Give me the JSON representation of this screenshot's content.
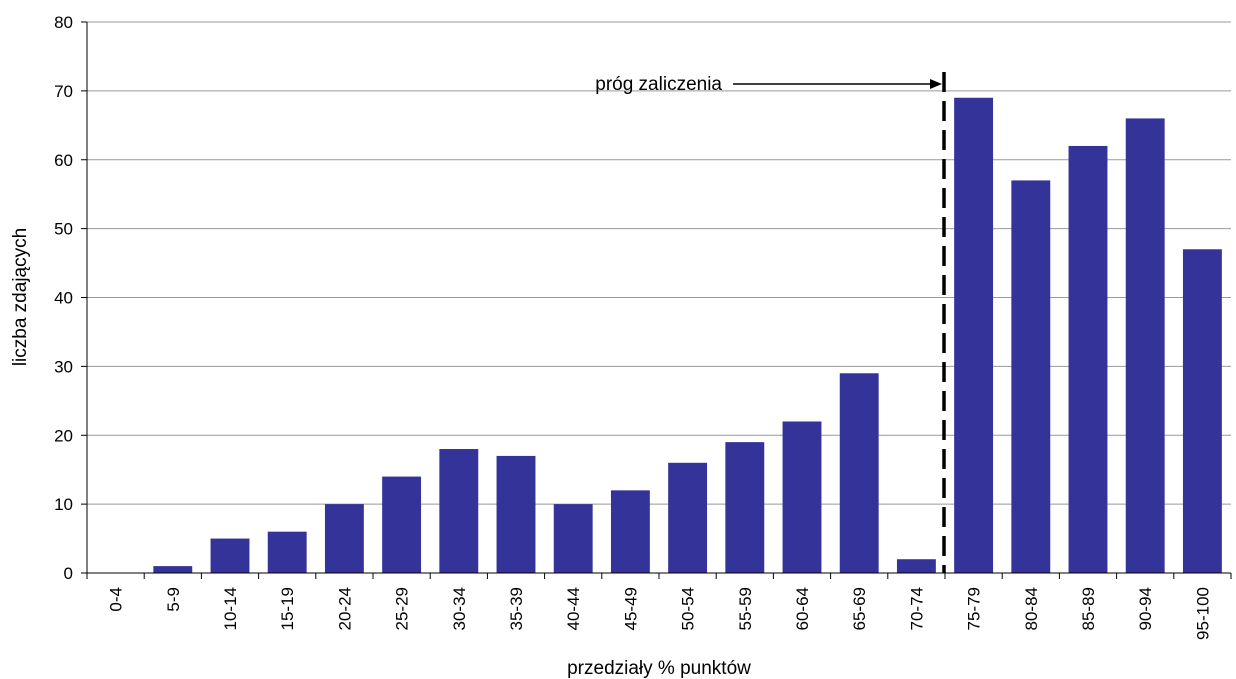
{
  "chart_data": {
    "type": "bar",
    "title": "",
    "xlabel": "przedziały % punktów",
    "ylabel": "liczba zdających",
    "ylim": [
      0,
      80
    ],
    "yticks": [
      0,
      10,
      20,
      30,
      40,
      50,
      60,
      70,
      80
    ],
    "grid": true,
    "categories": [
      "0-4",
      "5-9",
      "10-14",
      "15-19",
      "20-24",
      "25-29",
      "30-34",
      "35-39",
      "40-44",
      "45-49",
      "50-54",
      "55-59",
      "60-64",
      "65-69",
      "70-74",
      "75-79",
      "80-84",
      "85-89",
      "90-94",
      "95-100"
    ],
    "values": [
      0,
      1,
      5,
      6,
      10,
      14,
      18,
      17,
      10,
      12,
      16,
      19,
      22,
      29,
      2,
      69,
      57,
      62,
      66,
      47
    ],
    "bar_color": "#333399",
    "annotation": {
      "text": "próg zaliczenia",
      "threshold_between": [
        "70-74",
        "75-79"
      ],
      "y_text": 71
    }
  }
}
